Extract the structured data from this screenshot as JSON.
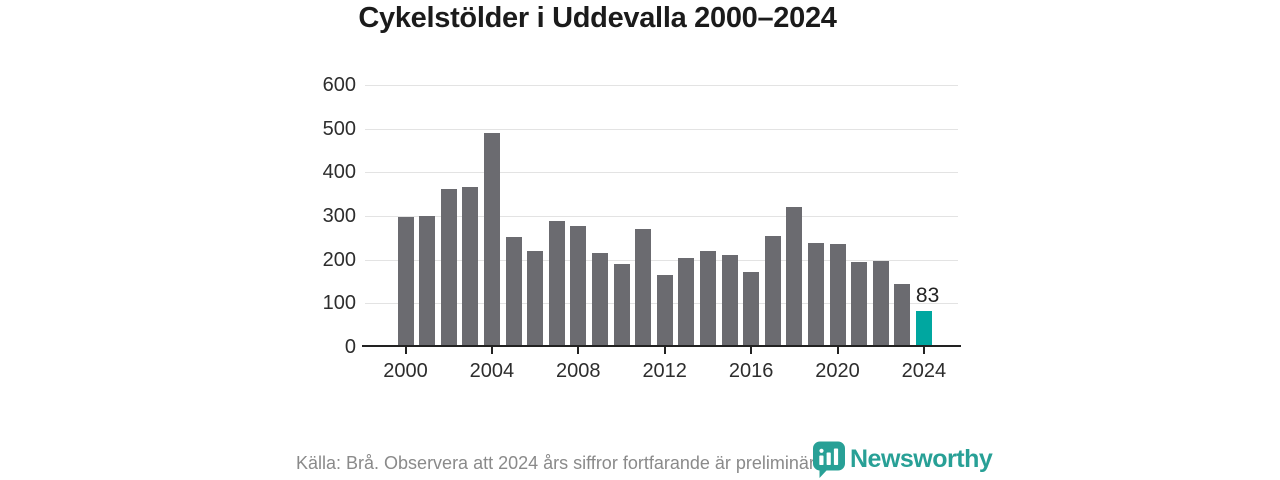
{
  "title": "Cykelstölder i Uddevalla 2000–2024",
  "footer": {
    "source_note": "Källa: Brå. Observera att 2024 års siffror fortfarande är preliminära.",
    "brand": "Newsworthy"
  },
  "colors": {
    "bar": "#6b6b70",
    "highlight": "#00a7a0",
    "grid": "#e3e3e3",
    "axis": "#222222",
    "title_text": "#1b1b1b",
    "tick_text": "#2d2d2d",
    "footer_text": "#8a8a8a",
    "brand_teal": "#28a096"
  },
  "chart_data": {
    "type": "bar",
    "title": "Cykelstölder i Uddevalla 2000–2024",
    "categories": [
      "2000",
      "2001",
      "2002",
      "2003",
      "2004",
      "2005",
      "2006",
      "2007",
      "2008",
      "2009",
      "2010",
      "2011",
      "2012",
      "2013",
      "2014",
      "2015",
      "2016",
      "2017",
      "2018",
      "2019",
      "2020",
      "2021",
      "2022",
      "2023",
      "2024"
    ],
    "values": [
      298,
      300,
      363,
      367,
      490,
      252,
      221,
      289,
      277,
      216,
      190,
      271,
      165,
      204,
      220,
      211,
      173,
      255,
      320,
      238,
      236,
      194,
      197,
      145,
      83
    ],
    "highlight_index": 24,
    "highlight_label": "83",
    "x_tick_labels": [
      "2000",
      "2004",
      "2008",
      "2012",
      "2016",
      "2020",
      "2024"
    ],
    "y_ticks": [
      0,
      100,
      200,
      300,
      400,
      500,
      600
    ],
    "xlabel": "",
    "ylabel": "",
    "ylim": [
      0,
      600
    ],
    "grid": "horizontal-only",
    "legend": "none"
  }
}
